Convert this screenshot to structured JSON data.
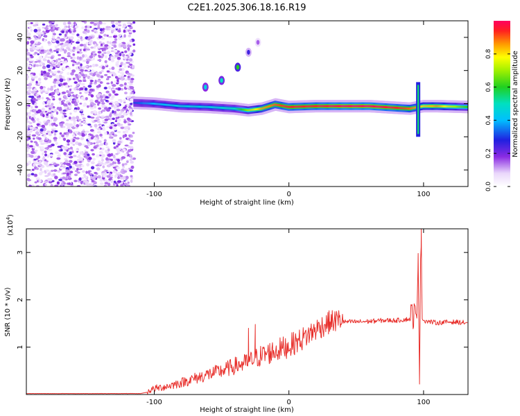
{
  "title": "C2E1.2025.306.18.16.R19",
  "colors": {
    "snr_line": "#e8302c",
    "background": "#ffffff",
    "frame": "#000000"
  },
  "chart_data": [
    {
      "type": "heatmap",
      "name": "spectrogram",
      "xlabel": "Height of straight line (km)",
      "ylabel": "Frequency (Hz)",
      "xlim": [
        -195,
        133
      ],
      "ylim": [
        -50,
        50
      ],
      "xticks": [
        -100,
        0,
        100
      ],
      "yticks": [
        -40,
        -20,
        0,
        20,
        40
      ],
      "grid": false,
      "colorbar": {
        "label": "Normalized spectral amplitude",
        "range": [
          0,
          1
        ],
        "ticks": [
          "0.0",
          "0.2",
          "0.4",
          "0.6",
          "0.8"
        ],
        "tick_values": [
          0,
          0.2,
          0.4,
          0.6,
          0.8
        ],
        "colormap": "rainbow (white→violet→blue→cyan→green→yellow→red)"
      },
      "noise_region": {
        "x_from": -195,
        "x_to": -115,
        "freq_from": -50,
        "freq_to": 50,
        "amplitude": 0.15
      },
      "ridge": [
        {
          "x": -115,
          "freq": 0.5,
          "amp": 0.3
        },
        {
          "x": -100,
          "freq": 0.0,
          "amp": 0.4
        },
        {
          "x": -80,
          "freq": -1.5,
          "amp": 0.45
        },
        {
          "x": -60,
          "freq": -2.0,
          "amp": 0.45
        },
        {
          "x": -40,
          "freq": -3.0,
          "amp": 0.5
        },
        {
          "x": -30,
          "freq": -4.0,
          "amp": 0.7
        },
        {
          "x": -20,
          "freq": -3.0,
          "amp": 0.85
        },
        {
          "x": -10,
          "freq": -0.5,
          "amp": 0.9
        },
        {
          "x": 0,
          "freq": -2.0,
          "amp": 0.95
        },
        {
          "x": 20,
          "freq": -1.5,
          "amp": 0.95
        },
        {
          "x": 40,
          "freq": -1.5,
          "amp": 1.0
        },
        {
          "x": 60,
          "freq": -1.5,
          "amp": 1.0
        },
        {
          "x": 80,
          "freq": -2.5,
          "amp": 0.95
        },
        {
          "x": 90,
          "freq": -3.0,
          "amp": 0.9
        },
        {
          "x": 100,
          "freq": -1.5,
          "amp": 0.8
        },
        {
          "x": 110,
          "freq": -1.5,
          "amp": 0.85
        },
        {
          "x": 133,
          "freq": -2.0,
          "amp": 0.6
        }
      ],
      "harmonic_branch": [
        {
          "x": -62,
          "freq": 10,
          "amp": 0.45
        },
        {
          "x": -50,
          "freq": 14,
          "amp": 0.5
        },
        {
          "x": -38,
          "freq": 22,
          "amp": 0.6
        },
        {
          "x": -30,
          "freq": 31,
          "amp": 0.25
        },
        {
          "x": -23,
          "freq": 37,
          "amp": 0.15
        }
      ],
      "vertical_streak": {
        "x": 96,
        "freq_from": -20,
        "freq_to": 13,
        "amp": 0.55
      }
    },
    {
      "type": "line",
      "name": "snr",
      "xlabel": "Height of straight line (km)",
      "ylabel": "SNR (10 * v/v)",
      "ylabel_multiplier": "(x10",
      "ylabel_multiplier_exp": "4",
      "multiplier_close": ")",
      "xlim": [
        -195,
        133
      ],
      "ylim": [
        0,
        3.5
      ],
      "xticks": [
        -100,
        0,
        100
      ],
      "yticks": [
        1,
        2,
        3
      ],
      "grid": false,
      "series": [
        {
          "name": "SNR",
          "x": [
            -195,
            -110,
            -105,
            -100,
            -90,
            -80,
            -70,
            -60,
            -50,
            -40,
            -30,
            -25,
            -20,
            -10,
            0,
            10,
            20,
            30,
            40,
            50,
            60,
            70,
            80,
            90,
            95,
            96,
            97,
            98,
            99,
            100,
            105,
            110,
            120,
            133
          ],
          "y": [
            0.02,
            0.02,
            0.05,
            0.1,
            0.15,
            0.22,
            0.3,
            0.38,
            0.45,
            0.55,
            0.62,
            0.7,
            0.75,
            0.85,
            0.95,
            1.1,
            1.3,
            1.45,
            1.52,
            1.52,
            1.53,
            1.55,
            1.55,
            1.58,
            1.6,
            2.9,
            0.3,
            3.5,
            1.6,
            1.55,
            1.52,
            1.5,
            1.52,
            1.5
          ]
        }
      ],
      "noise": [
        {
          "x_from": -105,
          "x_to": 40,
          "amplitude": 0.25
        },
        {
          "x_from": 40,
          "x_to": 90,
          "amplitude": 0.05
        },
        {
          "x_from": 90,
          "x_to": 95,
          "amplitude": 0.3
        },
        {
          "x_from": 100,
          "x_to": 133,
          "amplitude": 0.05
        }
      ],
      "spikes": [
        {
          "x": -30,
          "y": 1.4
        },
        {
          "x": -25,
          "y": 1.48
        },
        {
          "x": 96,
          "y": 2.98
        },
        {
          "x": 97,
          "y": 0.22
        },
        {
          "x": 98.3,
          "y": 3.5
        }
      ]
    }
  ]
}
